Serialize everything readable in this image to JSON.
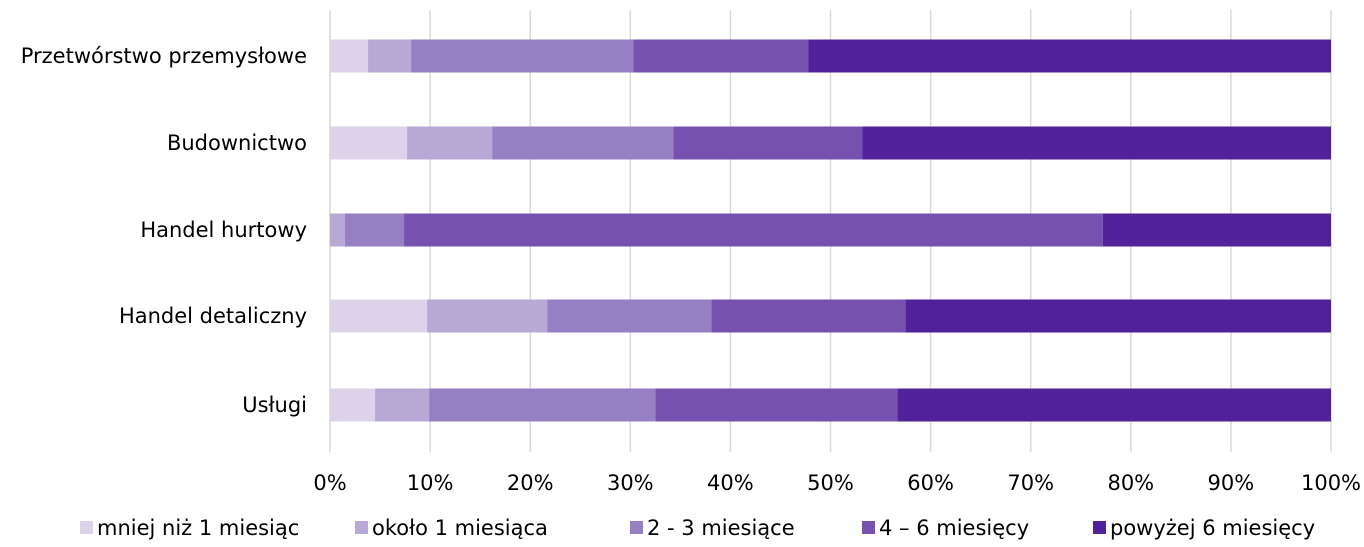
{
  "chart_data": {
    "type": "bar",
    "orientation": "horizontal",
    "stacked": true,
    "percent_stacked": true,
    "categories": [
      "Przetwórstwo przemysłowe",
      "Budownictwo",
      "Handel hurtowy",
      "Handel detaliczny",
      "Usługi"
    ],
    "series": [
      {
        "name": "mniej niż 1 miesiąc",
        "color": "#dcd3ea",
        "values": [
          3.8,
          7.7,
          0.0,
          9.7,
          4.5
        ]
      },
      {
        "name": "około 1 miesiąca",
        "color": "#b8a8d6",
        "values": [
          4.3,
          8.5,
          1.5,
          12.0,
          5.4
        ]
      },
      {
        "name": "2 - 3 miesiące",
        "color": "#977fc3",
        "values": [
          22.2,
          18.1,
          5.9,
          16.4,
          22.6
        ]
      },
      {
        "name": "4 – 6 miesięcy",
        "color": "#7651b0",
        "values": [
          17.5,
          18.9,
          69.8,
          19.4,
          24.2
        ]
      },
      {
        "name": "powyżej 6 miesięcy",
        "color": "#52229a",
        "values": [
          52.2,
          46.8,
          22.8,
          42.5,
          43.3
        ]
      }
    ],
    "xlim": [
      0,
      100
    ],
    "xticks": [
      "0%",
      "10%",
      "20%",
      "30%",
      "40%",
      "50%",
      "60%",
      "70%",
      "80%",
      "90%",
      "100%"
    ],
    "grid": true,
    "legend_position": "bottom",
    "title": "",
    "xlabel": "",
    "ylabel": ""
  }
}
